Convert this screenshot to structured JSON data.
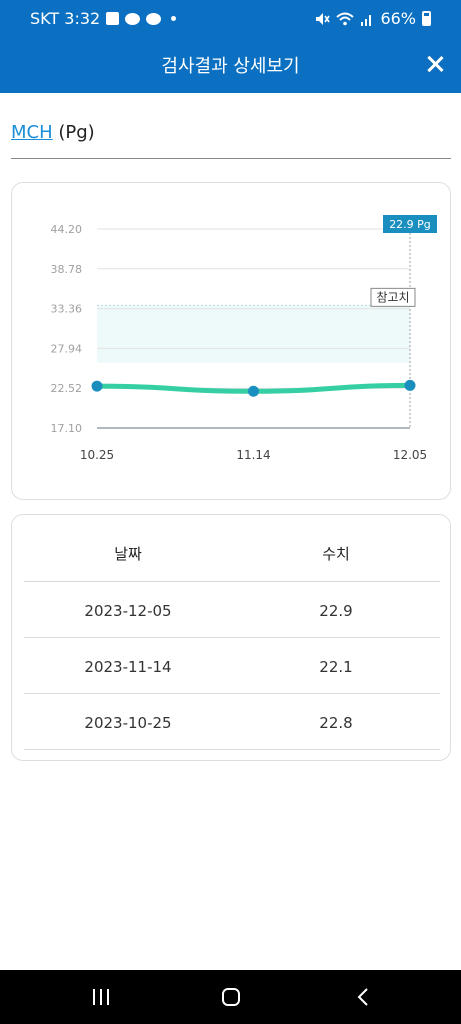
{
  "status_bar": {
    "carrier_time": "SKT 3:32",
    "battery": "66%",
    "icons": [
      "image-icon",
      "talk-icon",
      "game-icon",
      "mute-icon",
      "wifi-icon",
      "signal-icon",
      "battery-icon"
    ]
  },
  "header": {
    "title": "검사결과 상세보기",
    "close_icon": "close-icon",
    "bg_color": "#0b70c2"
  },
  "test": {
    "name": "MCH",
    "unit": "(Pg)"
  },
  "chart_data": {
    "type": "line",
    "categories": [
      "10.25",
      "11.14",
      "12.05"
    ],
    "series": [
      {
        "values": [
          22.8,
          22.1,
          22.9
        ]
      }
    ],
    "y_ticks": [
      "44.20",
      "38.78",
      "33.36",
      "27.94",
      "22.52",
      "17.10"
    ],
    "ylim": [
      17.1,
      44.2
    ],
    "reference_range": [
      26.0,
      33.8
    ],
    "reference_label": "참고치",
    "tooltip": "22.9 Pg",
    "line_color": "#36cfa4",
    "point_color": "#1a8fbf",
    "grid": true
  },
  "table": {
    "headers": [
      "날짜",
      "수치"
    ],
    "rows": [
      {
        "date": "2023-12-05",
        "value": "22.9"
      },
      {
        "date": "2023-11-14",
        "value": "22.1"
      },
      {
        "date": "2023-10-25",
        "value": "22.8"
      }
    ]
  },
  "nav": {
    "icons": [
      "recent-apps-icon",
      "home-icon",
      "back-icon"
    ]
  }
}
